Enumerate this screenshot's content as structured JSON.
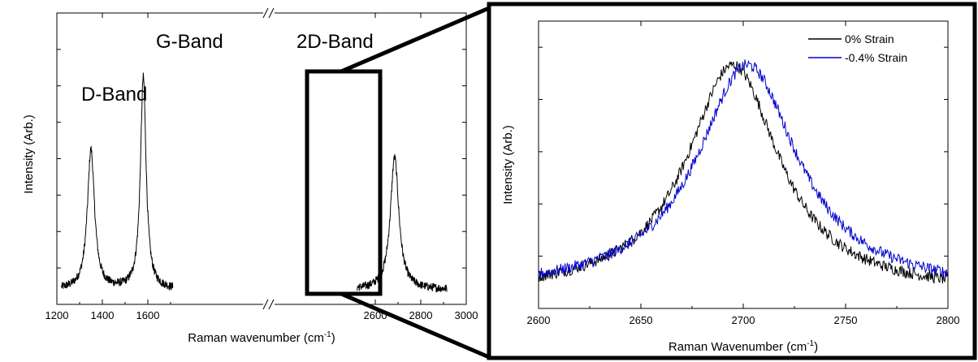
{
  "colors": {
    "series_0": "#000000",
    "series_1": "#0000cc",
    "frame": "#000000"
  },
  "chart_data": [
    {
      "type": "line",
      "title": "",
      "xlabel": "Raman wavenumber (cm",
      "xlabel_sup": "-1",
      "xlabel_close": ")",
      "ylabel": "Intensity (Arb.)",
      "xlim": [
        1200,
        3000
      ],
      "broken_axis": {
        "first_segment": [
          1200,
          1750
        ],
        "second_segment": [
          2500,
          3000
        ]
      },
      "x_ticks": [
        "1200",
        "1400",
        "1600",
        "2600",
        "2800",
        "3000"
      ],
      "annotations": [
        "D-Band",
        "G-Band",
        "2D-Band"
      ],
      "highlight_box_x": [
        2600,
        2800
      ],
      "peaks": [
        {
          "label": "D-Band",
          "center": 1350,
          "height": 0.58
        },
        {
          "label": "G-Band",
          "center": 1580,
          "height": 0.88
        },
        {
          "label": "2D-Band",
          "center": 2685,
          "height": 0.55
        }
      ],
      "series": [
        {
          "x_range": [
            1220,
            2915
          ],
          "baseline": 0.0
        }
      ]
    },
    {
      "type": "line",
      "title": "",
      "xlabel": "Raman Wavenumber (cm",
      "xlabel_sup": "-1",
      "xlabel_close": ")",
      "ylabel": "Intensity (Arb.)",
      "xlim": [
        2600,
        2800
      ],
      "x_ticks": [
        "2600",
        "2650",
        "2700",
        "2750",
        "2800"
      ],
      "legend_position": "top-right",
      "series": [
        {
          "name": "0% Strain",
          "color": "#000000",
          "peak_center": 2695,
          "peak_height": 1.0,
          "fwhm": 55,
          "baseline": 0.02
        },
        {
          "name": "-0.4% Strain",
          "color": "#0000cc",
          "peak_center": 2702,
          "peak_height": 1.0,
          "fwhm": 60,
          "baseline": 0.03
        }
      ]
    }
  ]
}
